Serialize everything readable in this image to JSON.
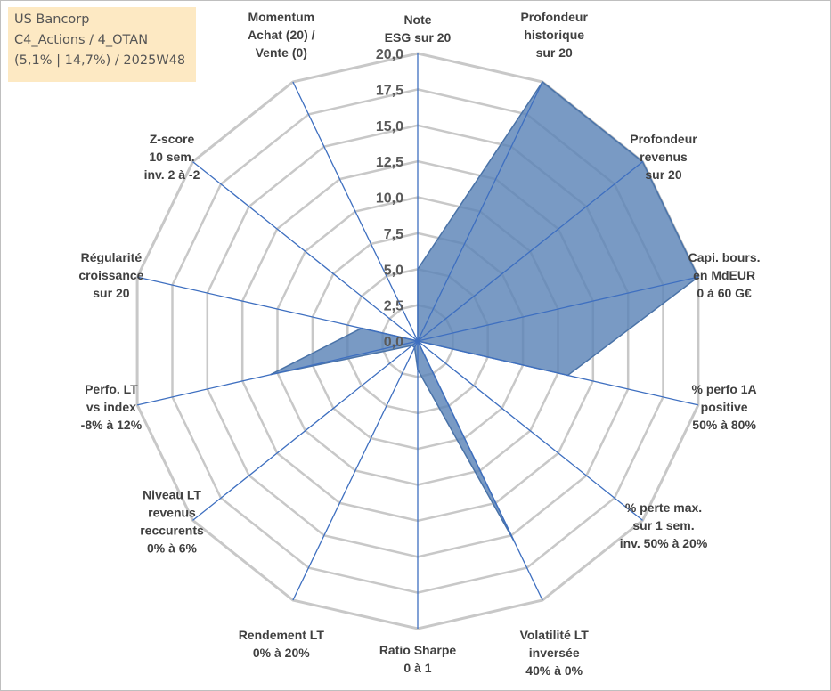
{
  "info_box": {
    "line1": "US Bancorp",
    "line2": "C4_Actions / 4_OTAN",
    "line3": "(5,1% | 14,7%) / 2025W48"
  },
  "chart_data": {
    "type": "radar",
    "title": "",
    "rlim": [
      0,
      20
    ],
    "ticks": [
      "0,0",
      "2,5",
      "5,0",
      "7,5",
      "10,0",
      "12,5",
      "15,0",
      "17,5",
      "20,0"
    ],
    "grid": true,
    "categories": [
      [
        "Note",
        "ESG sur 20"
      ],
      [
        "Profondeur",
        "historique",
        "sur 20"
      ],
      [
        "Profondeur",
        "revenus",
        "sur 20"
      ],
      [
        "Capi. bours.",
        "en MdEUR",
        "0 à 60 G€"
      ],
      [
        "% perfo 1A",
        "positive",
        "50% à 80%"
      ],
      [
        "% perte max.",
        "sur 1 sem.",
        "inv. 50% à 20%"
      ],
      [
        "Volatilité LT",
        "inversée",
        "40% à 0%"
      ],
      [
        "Ratio Sharpe",
        "0 à 1"
      ],
      [
        "Rendement LT",
        "0% à 20%"
      ],
      [
        "Niveau LT",
        "revenus",
        "reccurents",
        "0% à 6%"
      ],
      [
        "Perfo. LT",
        "vs index",
        "-8% à 12%"
      ],
      [
        "Régularité",
        "croissance",
        "sur 20"
      ],
      [
        "Z-score",
        "10 sem.",
        "inv. 2 à -2"
      ],
      [
        "Momentum",
        "Achat (20) /",
        "Vente (0)"
      ]
    ],
    "series": [
      {
        "values": [
          5.0,
          20.0,
          20.0,
          20.0,
          10.7,
          0.0,
          15.5,
          2.0,
          0.5,
          0.5,
          10.5,
          4.0,
          0.0,
          0.0
        ]
      }
    ],
    "colors": {
      "fill": "#5b84b7",
      "stroke": "#4a73a8",
      "spoke": "#3e6fc0",
      "grid": "#c8c8c8"
    }
  }
}
